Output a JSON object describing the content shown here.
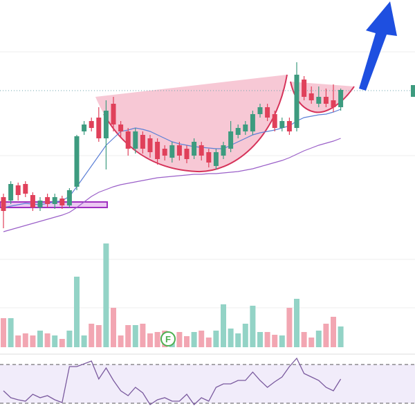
{
  "chart_data": {
    "type": "candlestick",
    "up_color": "#3d9b7f",
    "down_color": "#e0405a",
    "volume_up_color": "#93d3c6",
    "volume_down_color": "#f2a6b2",
    "ylim": [
      0,
      340
    ],
    "open": [
      55,
      50,
      72,
      74,
      58,
      40,
      55,
      45,
      53,
      43,
      70,
      150,
      165,
      170,
      140,
      190,
      160,
      150,
      125,
      145,
      140,
      135,
      125,
      112,
      130,
      125,
      115,
      130,
      120,
      100,
      115,
      125,
      145,
      150,
      150,
      175,
      185,
      175,
      155,
      165,
      155,
      225,
      205,
      190,
      200,
      195,
      185
    ],
    "high": [
      60,
      78,
      76,
      78,
      62,
      55,
      60,
      60,
      57,
      68,
      145,
      165,
      170,
      185,
      195,
      200,
      165,
      155,
      155,
      150,
      145,
      140,
      130,
      135,
      135,
      130,
      140,
      135,
      125,
      125,
      135,
      165,
      160,
      165,
      180,
      190,
      190,
      180,
      170,
      170,
      250,
      230,
      215,
      215,
      212,
      218,
      212
    ],
    "low": [
      10,
      45,
      50,
      55,
      35,
      35,
      40,
      38,
      38,
      40,
      65,
      145,
      150,
      135,
      95,
      150,
      140,
      115,
      118,
      118,
      112,
      102,
      108,
      105,
      108,
      104,
      110,
      108,
      98,
      95,
      110,
      120,
      140,
      145,
      145,
      170,
      165,
      150,
      150,
      145,
      150,
      195,
      190,
      185,
      185,
      178,
      180
    ],
    "close": [
      35,
      74,
      58,
      60,
      40,
      50,
      45,
      55,
      43,
      65,
      143,
      160,
      155,
      140,
      180,
      160,
      150,
      125,
      150,
      125,
      120,
      110,
      115,
      130,
      115,
      110,
      135,
      115,
      105,
      120,
      130,
      150,
      155,
      160,
      175,
      185,
      170,
      155,
      165,
      150,
      232,
      200,
      195,
      200,
      190,
      185,
      210
    ],
    "ma": [
      {
        "color": "#5b7fd6",
        "values": [
          40,
          42,
          44,
          46,
          45,
          44,
          46,
          48,
          50,
          56,
          70,
          85,
          100,
          115,
          130,
          140,
          150,
          152,
          155,
          153,
          150,
          145,
          140,
          135,
          132,
          130,
          128,
          127,
          126,
          125,
          125,
          130,
          135,
          140,
          145,
          148,
          150,
          152,
          155,
          158,
          165,
          170,
          172,
          174,
          175,
          178,
          182
        ]
      },
      {
        "color": "#9a5fc8",
        "values": [
          5,
          8,
          11,
          14,
          17,
          20,
          23,
          26,
          29,
          33,
          40,
          48,
          56,
          62,
          66,
          70,
          73,
          75,
          77,
          79,
          81,
          83,
          84,
          85,
          86,
          87,
          88,
          88,
          89,
          89,
          90,
          91,
          92,
          94,
          96,
          99,
          102,
          105,
          108,
          112,
          117,
          122,
          126,
          130,
          133,
          136,
          140
        ]
      }
    ],
    "volume_ylim": [
      0,
      160
    ],
    "volume": [
      42,
      42,
      17,
      20,
      17,
      24,
      20,
      17,
      12,
      24,
      102,
      17,
      34,
      32,
      150,
      57,
      17,
      32,
      32,
      34,
      20,
      22,
      24,
      14,
      22,
      16,
      22,
      24,
      14,
      24,
      62,
      27,
      20,
      34,
      60,
      22,
      22,
      18,
      17,
      57,
      70,
      22,
      14,
      24,
      34,
      44,
      30
    ],
    "rsi_ylim": [
      0,
      100
    ],
    "rsi_color": "#7a5a9e",
    "rsi_levels": [
      73,
      17
    ],
    "rsi": [
      35,
      25,
      22,
      20,
      30,
      25,
      28,
      22,
      18,
      70,
      70,
      74,
      78,
      52,
      68,
      50,
      35,
      28,
      40,
      32,
      15,
      22,
      25,
      20,
      20,
      30,
      15,
      25,
      20,
      40,
      45,
      45,
      50,
      50,
      62,
      50,
      40,
      48,
      55,
      70,
      82,
      60,
      55,
      50,
      40,
      35,
      52
    ],
    "marker": "F"
  }
}
